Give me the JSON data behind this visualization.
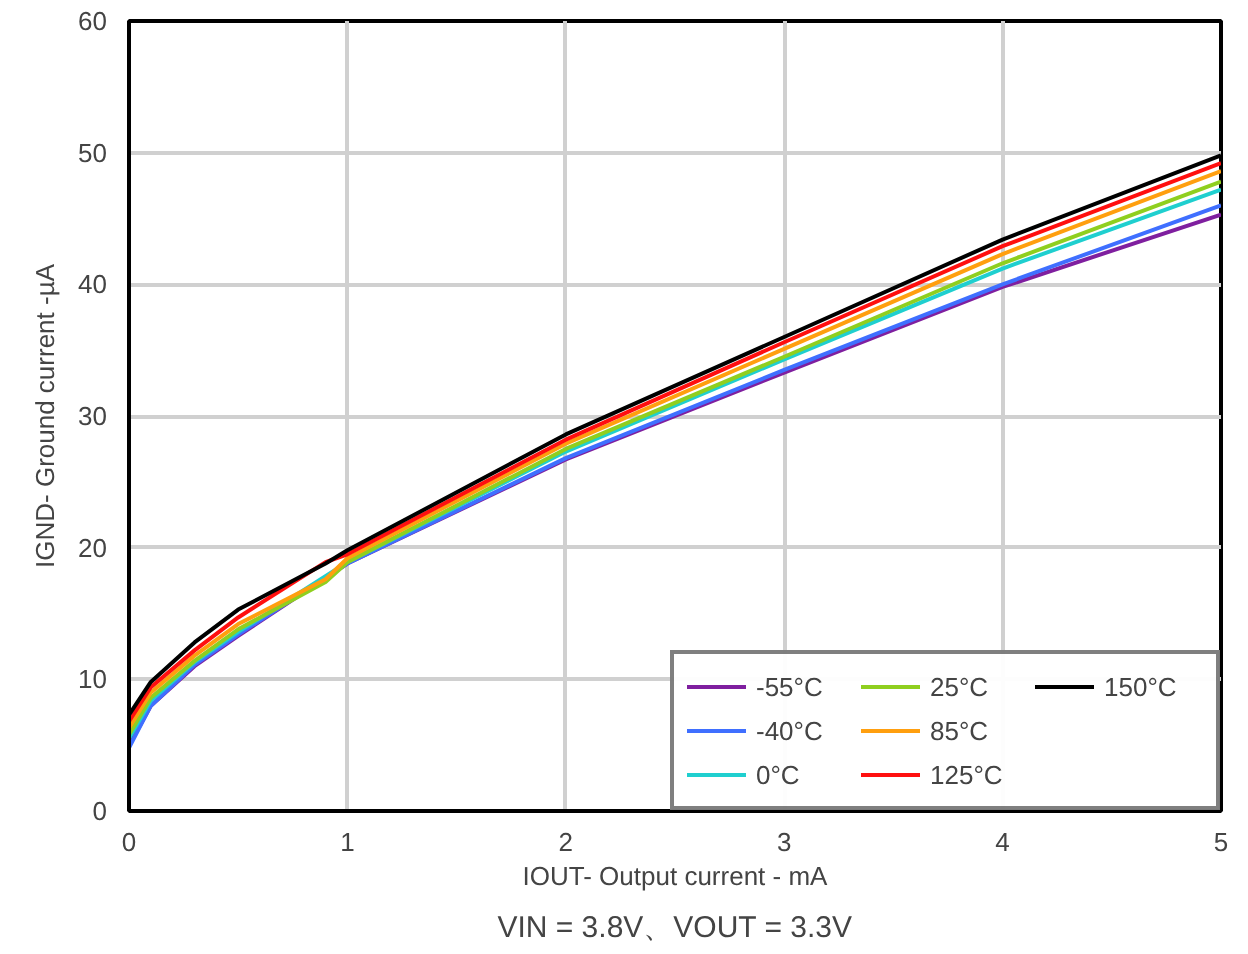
{
  "chart_data": {
    "type": "line",
    "xlabel": "IOUT- Output current - mA",
    "ylabel": "IGND- Ground current -µA",
    "annotations": [
      "VIN = 3.8V、VOUT = 3.3V"
    ],
    "x": [
      0,
      0.1,
      0.3,
      0.5,
      0.9,
      1,
      2,
      3,
      4,
      5
    ],
    "series": [
      {
        "name": "-55°C",
        "color": "#7f1f9f",
        "x": [
          0,
          0.1,
          0.3,
          0.5,
          1,
          2,
          3,
          4,
          5
        ],
        "values": [
          5.0,
          8.0,
          11.0,
          13.3,
          18.8,
          26.7,
          33.3,
          39.8,
          45.3
        ]
      },
      {
        "name": "-40°C",
        "color": "#3f6fff",
        "x": [
          0,
          0.1,
          0.3,
          0.5,
          1,
          2,
          3,
          4,
          5
        ],
        "values": [
          4.8,
          8.0,
          11.1,
          13.4,
          18.8,
          26.8,
          33.5,
          40.0,
          46.0
        ]
      },
      {
        "name": "0°C",
        "color": "#1fcfcf",
        "x": [
          0,
          0.1,
          0.3,
          0.5,
          1,
          2,
          3,
          4,
          5
        ],
        "values": [
          5.5,
          8.4,
          11.3,
          13.6,
          18.9,
          27.3,
          34.3,
          41.2,
          47.2
        ]
      },
      {
        "name": "25°C",
        "color": "#8fcf1f",
        "values": [
          5.8,
          8.6,
          11.4,
          13.8,
          17.4,
          18.9,
          27.5,
          34.5,
          41.6,
          47.8
        ]
      },
      {
        "name": "85°C",
        "color": "#ff9f0f",
        "values": [
          6.3,
          9.0,
          11.8,
          14.2,
          17.6,
          19.2,
          27.9,
          35.1,
          42.3,
          48.6
        ]
      },
      {
        "name": "125°C",
        "color": "#ff0f0f",
        "values": [
          6.8,
          9.4,
          12.2,
          14.7,
          18.9,
          19.5,
          28.2,
          35.6,
          42.9,
          49.2
        ]
      },
      {
        "name": "150°C",
        "color": "#000000",
        "values": [
          7.3,
          9.8,
          12.8,
          15.3,
          18.8,
          19.8,
          28.6,
          36.0,
          43.4,
          49.8
        ]
      }
    ],
    "xlim": [
      0,
      5
    ],
    "ylim": [
      0,
      60
    ],
    "xticks": [
      0,
      1,
      2,
      3,
      4,
      5
    ],
    "yticks": [
      0,
      10,
      20,
      30,
      40,
      50,
      60
    ],
    "grid": true,
    "legend": "bottom right",
    "marker": "none",
    "line_style": "solid"
  }
}
